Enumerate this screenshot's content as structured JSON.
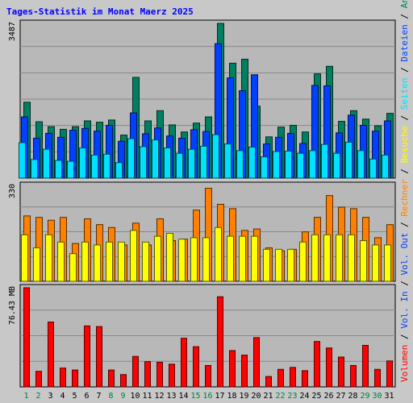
{
  "chart_data": {
    "type": "bar",
    "title": "Tages-Statistik im Monat Maerz 2025",
    "days": [
      "1",
      "2",
      "3",
      "4",
      "5",
      "6",
      "7",
      "8",
      "9",
      "10",
      "11",
      "12",
      "13",
      "14",
      "15",
      "16",
      "17",
      "18",
      "19",
      "20",
      "21",
      "22",
      "23",
      "24",
      "25",
      "26",
      "27",
      "28",
      "29",
      "30",
      "31"
    ],
    "weekend_days": [
      "1",
      "2",
      "8",
      "9",
      "15",
      "16",
      "22",
      "23",
      "29",
      "30"
    ],
    "panels": [
      {
        "id": "top",
        "max_label": "3487",
        "ymax": 3487,
        "series": [
          {
            "name": "Anfragen",
            "color": "#008060",
            "values": [
              1710,
              1270,
              1160,
              1100,
              1160,
              1290,
              1260,
              1310,
              970,
              2270,
              1290,
              1520,
              1200,
              1040,
              1240,
              1380,
              3487,
              2590,
              2680,
              1620,
              930,
              1150,
              1190,
              1040,
              2350,
              2520,
              1280,
              1520,
              1330,
              1180,
              1460
            ]
          },
          {
            "name": "Dateien",
            "color": "#0040ff",
            "values": [
              1380,
              900,
              1010,
              920,
              1080,
              1120,
              1060,
              1190,
              830,
              1470,
              1000,
              1130,
              950,
              900,
              1090,
              1050,
              3030,
              2260,
              1970,
              2330,
              770,
              920,
              1010,
              780,
              2090,
              2080,
              1020,
              1420,
              1190,
              1060,
              1290
            ]
          },
          {
            "name": "Seiten",
            "color": "#00e0ff",
            "values": [
              800,
              420,
              650,
              400,
              380,
              680,
              520,
              540,
              350,
              890,
              710,
              860,
              680,
              560,
              650,
              720,
              980,
              770,
              620,
              700,
              480,
              600,
              610,
              560,
              620,
              760,
              560,
              810,
              620,
              430,
              520
            ]
          }
        ]
      },
      {
        "id": "middle",
        "max_label": "330",
        "ymax": 330,
        "series": [
          {
            "name": "Rechner",
            "color": "#ff8000",
            "values": [
              225,
              220,
              210,
              220,
              130,
              215,
              195,
              185,
              125,
              200,
              125,
              215,
              140,
              145,
              245,
              320,
              265,
              250,
              175,
              180,
              115,
              105,
              110,
              170,
              220,
              295,
              255,
              250,
              220,
              150,
              195
            ]
          },
          {
            "name": "Besuche",
            "color": "#ffff00",
            "values": [
              160,
              115,
              160,
              135,
              95,
              135,
              125,
              135,
              135,
              175,
              135,
              155,
              165,
              145,
              150,
              150,
              185,
              155,
              155,
              155,
              110,
              110,
              110,
              135,
              160,
              160,
              160,
              160,
              140,
              125,
              125
            ]
          }
        ]
      },
      {
        "id": "bottom",
        "max_label": "76.43 MB",
        "ymax": 76.43,
        "series": [
          {
            "name": "Volumen",
            "color": "#ff0000",
            "values": [
              76.43,
              12,
              50,
              14.5,
              13,
              47,
              46.5,
              13,
              9.5,
              23.5,
              19.5,
              19,
              17.5,
              37.5,
              31,
              16.5,
              69.5,
              28,
              24.5,
              38,
              8,
              13.5,
              15,
              12.5,
              35,
              30,
              23,
              16.5,
              32,
              13.5,
              20
            ]
          }
        ]
      }
    ],
    "right_legend": {
      "segments": [
        {
          "text": "Volumen",
          "color": "#ff0000"
        },
        {
          "text": " / ",
          "color": "#000000"
        },
        {
          "text": "Vol. In",
          "color": "#0040ff"
        },
        {
          "text": " / ",
          "color": "#000000"
        },
        {
          "text": "Vol. Out",
          "color": "#0040ff"
        },
        {
          "text": " / ",
          "color": "#000000"
        },
        {
          "text": "Rechner",
          "color": "#ff8000"
        },
        {
          "text": " / ",
          "color": "#000000"
        },
        {
          "text": "Besuche",
          "color": "#ffff00"
        },
        {
          "text": " / ",
          "color": "#000000"
        },
        {
          "text": "Seiten",
          "color": "#00e0ff"
        },
        {
          "text": " / ",
          "color": "#000000"
        },
        {
          "text": "Dateien",
          "color": "#0040ff"
        },
        {
          "text": " / ",
          "color": "#000000"
        },
        {
          "text": "Anfragen",
          "color": "#008060"
        }
      ]
    },
    "colors": {
      "background": "#c8c8c8",
      "plot_background": "#b8b8b8",
      "gridline": "#888888",
      "title": "#0000ff",
      "weekend_label": "#008040",
      "weekday_label": "#000000"
    }
  }
}
